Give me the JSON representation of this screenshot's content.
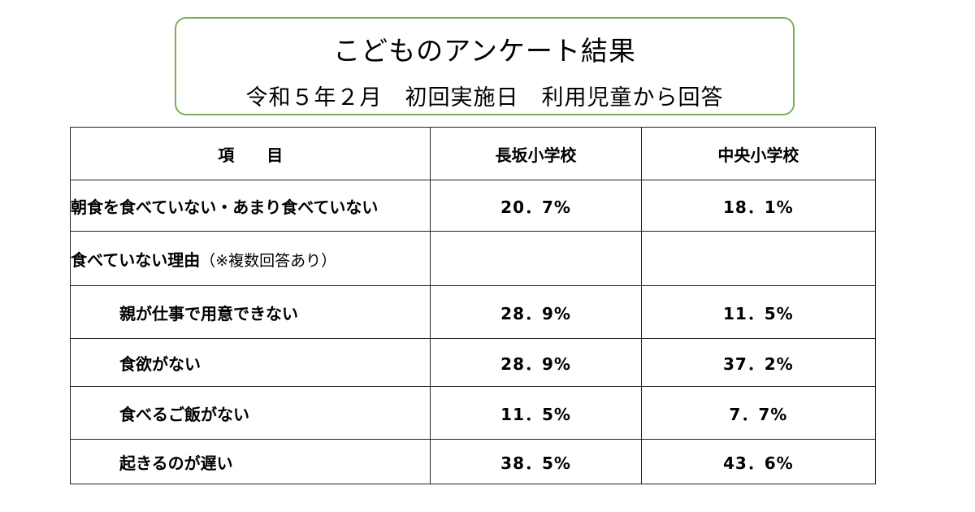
{
  "header": {
    "title": "こどものアンケート結果",
    "subtitle": "令和５年２月　初回実施日　利用児童から回答"
  },
  "table": {
    "columns": [
      "項　　目",
      "長坂小学校",
      "中央小学校"
    ],
    "rows": [
      {
        "label": "朝食を食べていない・あまり食べていない",
        "nagasaka": "20．7%",
        "chuo": "18．1%"
      },
      {
        "label": "食べていない理由",
        "note": "（※複数回答あり）",
        "nagasaka": "",
        "chuo": ""
      },
      {
        "label": "親が仕事で用意できない",
        "nagasaka": "28．9%",
        "chuo": "11．5%"
      },
      {
        "label": "食欲がない",
        "nagasaka": "28．9%",
        "chuo": "37．2%"
      },
      {
        "label": "食べるご飯がない",
        "nagasaka": "11．5%",
        "chuo": "7．7%"
      },
      {
        "label": "起きるのが遅い",
        "nagasaka": "38．5%",
        "chuo": "43．6%"
      }
    ]
  },
  "colors": {
    "title_border": "#79b25a",
    "table_border": "#222222",
    "text": "#000000"
  }
}
